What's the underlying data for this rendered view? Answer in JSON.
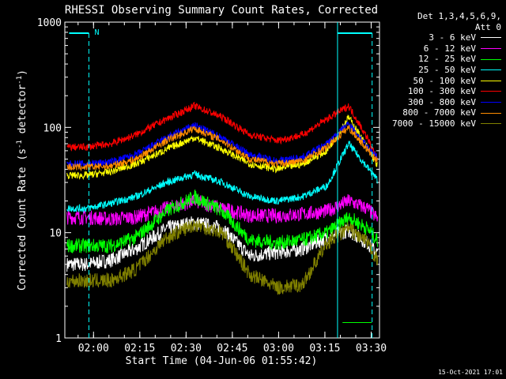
{
  "chart_data": {
    "type": "line",
    "title": "RHESSI Observing Summary Count Rates, Corrected",
    "ylabel": "Corrected Count Rate (s",
    "ylabel_sup": "-1",
    "ylabel_tail": " detector",
    "ylabel_sup2": "-1",
    "ylabel_end": ")",
    "xlabel": "Start Time (04-Jun-06 01:55:42)",
    "yscale": "log",
    "ylim": [
      1,
      1000
    ],
    "xlim_minutes": [
      -5,
      97
    ],
    "x_ticks": [
      {
        "label": "02:00",
        "t": 4.3
      },
      {
        "label": "02:15",
        "t": 19.3
      },
      {
        "label": "02:30",
        "t": 34.3
      },
      {
        "label": "02:45",
        "t": 49.3
      },
      {
        "label": "03:00",
        "t": 64.3
      },
      {
        "label": "03:15",
        "t": 79.3
      },
      {
        "label": "03:30",
        "t": 94.3
      }
    ],
    "y_ticks": [
      {
        "label": "1",
        "v": 1
      },
      {
        "label": "10",
        "v": 10
      },
      {
        "label": "100",
        "v": 100
      },
      {
        "label": "1000",
        "v": 1000
      }
    ],
    "legend_header": [
      "Det 1,3,4,5,6,9,",
      "Att 0"
    ],
    "annotation": "N",
    "series": [
      {
        "name": "3 - 6 keV",
        "color": "#ffffff",
        "key": [
          [
            2,
            5
          ],
          [
            10,
            5.5
          ],
          [
            18,
            7
          ],
          [
            28,
            11
          ],
          [
            37,
            12.5
          ],
          [
            46,
            11
          ],
          [
            55,
            6
          ],
          [
            64,
            6.5
          ],
          [
            72,
            7
          ],
          [
            80,
            9
          ],
          [
            87,
            10.5
          ],
          [
            93,
            8
          ],
          [
            97,
            6
          ]
        ]
      },
      {
        "name": "6 - 12 keV",
        "color": "#ff00ff",
        "key": [
          [
            2,
            14
          ],
          [
            10,
            13.5
          ],
          [
            18,
            14
          ],
          [
            28,
            17
          ],
          [
            37,
            20
          ],
          [
            46,
            17
          ],
          [
            55,
            14.5
          ],
          [
            64,
            14.5
          ],
          [
            72,
            15
          ],
          [
            80,
            16
          ],
          [
            87,
            20
          ],
          [
            93,
            17
          ],
          [
            97,
            13
          ]
        ]
      },
      {
        "name": "12 - 25 keV",
        "color": "#00ff00",
        "key": [
          [
            2,
            7.5
          ],
          [
            10,
            7.5
          ],
          [
            18,
            9
          ],
          [
            28,
            16
          ],
          [
            37,
            22
          ],
          [
            46,
            16
          ],
          [
            55,
            8.5
          ],
          [
            64,
            8
          ],
          [
            72,
            8.5
          ],
          [
            80,
            10
          ],
          [
            87,
            14
          ],
          [
            93,
            11
          ],
          [
            97,
            8
          ]
        ]
      },
      {
        "name": "25 - 50 keV",
        "color": "#00ffff",
        "key": [
          [
            2,
            17
          ],
          [
            10,
            19
          ],
          [
            18,
            22
          ],
          [
            28,
            30
          ],
          [
            37,
            36
          ],
          [
            46,
            30
          ],
          [
            55,
            22
          ],
          [
            64,
            20
          ],
          [
            72,
            22
          ],
          [
            80,
            28
          ],
          [
            87,
            70
          ],
          [
            93,
            42
          ],
          [
            97,
            30
          ]
        ]
      },
      {
        "name": "50 - 100 keV",
        "color": "#ffff00",
        "key": [
          [
            2,
            35
          ],
          [
            10,
            38
          ],
          [
            18,
            45
          ],
          [
            28,
            62
          ],
          [
            37,
            80
          ],
          [
            46,
            62
          ],
          [
            55,
            45
          ],
          [
            64,
            40
          ],
          [
            72,
            45
          ],
          [
            80,
            60
          ],
          [
            87,
            125
          ],
          [
            93,
            65
          ],
          [
            97,
            40
          ]
        ]
      },
      {
        "name": "100 - 300 keV",
        "color": "#ff0000",
        "key": [
          [
            2,
            65
          ],
          [
            10,
            70
          ],
          [
            18,
            85
          ],
          [
            28,
            120
          ],
          [
            37,
            160
          ],
          [
            46,
            125
          ],
          [
            55,
            85
          ],
          [
            64,
            75
          ],
          [
            72,
            85
          ],
          [
            80,
            120
          ],
          [
            87,
            160
          ],
          [
            93,
            80
          ],
          [
            97,
            45
          ]
        ]
      },
      {
        "name": "300 - 800 keV",
        "color": "#0000ff",
        "key": [
          [
            2,
            45
          ],
          [
            10,
            47
          ],
          [
            18,
            55
          ],
          [
            28,
            80
          ],
          [
            37,
            105
          ],
          [
            46,
            80
          ],
          [
            55,
            55
          ],
          [
            64,
            48
          ],
          [
            72,
            52
          ],
          [
            80,
            70
          ],
          [
            87,
            110
          ],
          [
            93,
            65
          ],
          [
            97,
            50
          ]
        ]
      },
      {
        "name": "800 - 7000 keV",
        "color": "#ff8c00",
        "key": [
          [
            2,
            42
          ],
          [
            10,
            43
          ],
          [
            18,
            50
          ],
          [
            28,
            75
          ],
          [
            37,
            98
          ],
          [
            46,
            75
          ],
          [
            55,
            50
          ],
          [
            64,
            45
          ],
          [
            72,
            48
          ],
          [
            80,
            65
          ],
          [
            87,
            100
          ],
          [
            93,
            62
          ],
          [
            97,
            45
          ]
        ]
      },
      {
        "name": "7000 - 15000 keV",
        "color": "#808000",
        "key": [
          [
            2,
            3.5
          ],
          [
            10,
            3.5
          ],
          [
            18,
            4.5
          ],
          [
            28,
            9
          ],
          [
            37,
            12
          ],
          [
            46,
            10
          ],
          [
            55,
            4
          ],
          [
            64,
            3
          ],
          [
            72,
            3.2
          ],
          [
            80,
            8
          ],
          [
            87,
            11
          ],
          [
            93,
            8
          ],
          [
            97,
            5
          ]
        ]
      }
    ]
  },
  "footer": {
    "stamp": "15-Oct-2021 17:01"
  }
}
